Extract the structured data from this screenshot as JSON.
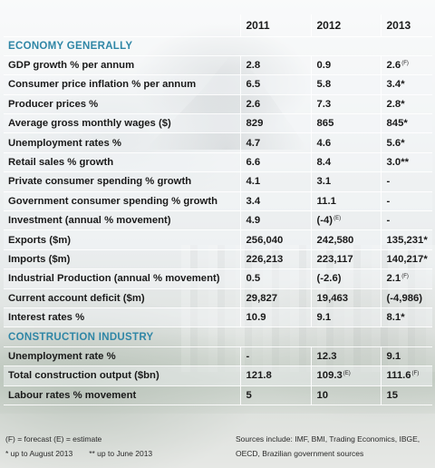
{
  "columns": [
    "2011",
    "2012",
    "2013"
  ],
  "sections": {
    "economy": "ECONOMY GENERALLY",
    "construction": "CONSTRUCTION INDUSTRY"
  },
  "rows": [
    {
      "label": "GDP growth % per annum",
      "v2011": "2.8",
      "v2012": "0.9",
      "v2013": "2.6",
      "n2013": "(F)"
    },
    {
      "label": "Consumer price inflation % per annum",
      "v2011": "6.5",
      "v2012": "5.8",
      "v2013": "3.4*"
    },
    {
      "label": "Producer prices %",
      "v2011": "2.6",
      "v2012": "7.3",
      "v2013": "2.8*"
    },
    {
      "label": "Average gross monthly wages ($)",
      "v2011": "829",
      "v2012": "865",
      "v2013": "845*"
    },
    {
      "label": "Unemployment rates %",
      "v2011": "4.7",
      "v2012": "4.6",
      "v2013": "5.6*"
    },
    {
      "label": "Retail sales % growth",
      "v2011": "6.6",
      "v2012": "8.4",
      "v2013": "3.0**"
    },
    {
      "label": "Private consumer spending % growth",
      "v2011": "4.1",
      "v2012": "3.1",
      "v2013": "-"
    },
    {
      "label": "Government consumer spending % growth",
      "v2011": "3.4",
      "v2012": "11.1",
      "v2013": "-"
    },
    {
      "label": "Investment (annual % movement)",
      "v2011": "4.9",
      "v2012": "(-4)",
      "n2012": "(E)",
      "v2013": "-"
    },
    {
      "label": "Exports ($m)",
      "v2011": "256,040",
      "v2012": "242,580",
      "v2013": "135,231*"
    },
    {
      "label": "Imports ($m)",
      "v2011": "226,213",
      "v2012": "223,117",
      "v2013": "140,217*"
    },
    {
      "label": "Industrial Production (annual % movement)",
      "v2011": "0.5",
      "v2012": "(-2.6)",
      "v2013": "2.1",
      "n2013": "(F)"
    },
    {
      "label": "Current account deficit ($m)",
      "v2011": "29,827",
      "v2012": "19,463",
      "v2013": "(-4,986)"
    },
    {
      "label": "Interest rates %",
      "v2011": "10.9",
      "v2012": "9.1",
      "v2013": "8.1*"
    }
  ],
  "construction_rows": [
    {
      "label": "Unemployment rate %",
      "v2011": "-",
      "v2012": "12.3",
      "v2013": "9.1"
    },
    {
      "label": "Total construction output ($bn)",
      "v2011": "121.8",
      "v2012": "109.3",
      "n2012": "(E)",
      "v2013": "111.6",
      "n2013": "(F)"
    },
    {
      "label": "Labour rates % movement",
      "v2011": "5",
      "v2012": "10",
      "v2013": "15"
    }
  ],
  "footer": {
    "legend1": "(F) = forecast  (E) = estimate",
    "legend2a": "*    up to August 2013",
    "legend2b": "**   up to June 2013",
    "sources": "Sources include: IMF, BMI, Trading Economics, IBGE, OECD, Brazilian government sources"
  }
}
